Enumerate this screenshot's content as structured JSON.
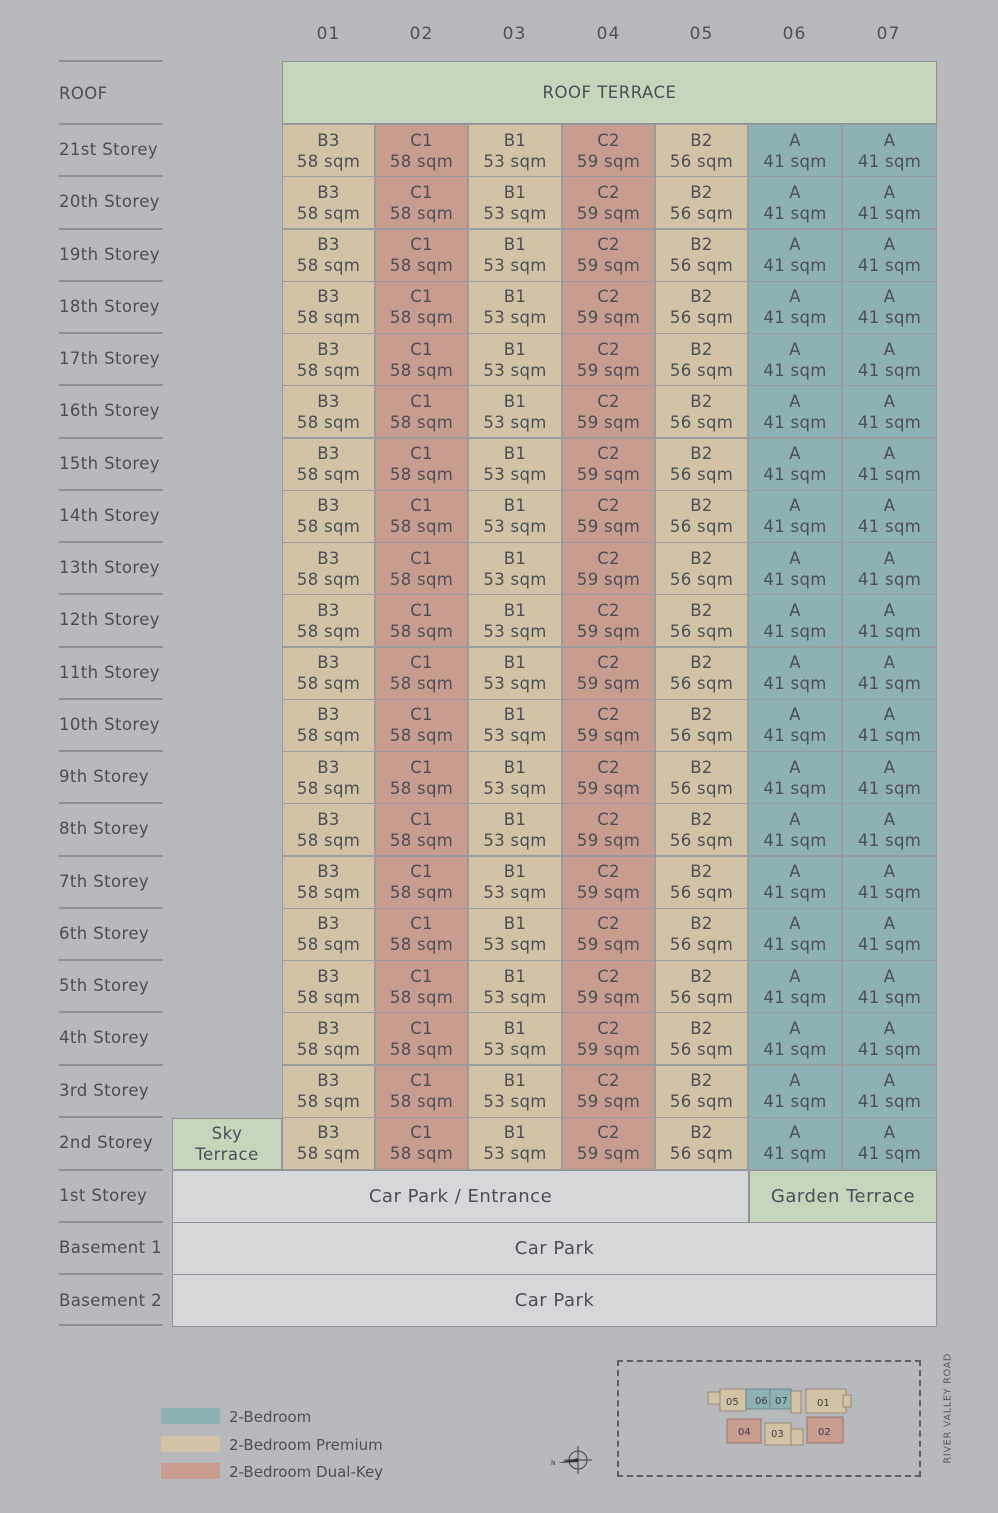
{
  "columns": [
    "01",
    "02",
    "03",
    "04",
    "05",
    "06",
    "07"
  ],
  "roof": {
    "label": "ROOF",
    "terrace": "ROOF TERRACE"
  },
  "floors": [
    "21st Storey",
    "20th Storey",
    "19th Storey",
    "18th Storey",
    "17th Storey",
    "16th Storey",
    "15th Storey",
    "14th Storey",
    "13th Storey",
    "12th Storey",
    "11th Storey",
    "10th Storey",
    "9th Storey",
    "8th Storey",
    "7th Storey",
    "6th Storey",
    "5th Storey",
    "4th Storey",
    "3rd Storey",
    "2nd Storey"
  ],
  "units": [
    {
      "type": "B3",
      "area": "58 sqm",
      "category": "premium"
    },
    {
      "type": "C1",
      "area": "58 sqm",
      "category": "dualkey"
    },
    {
      "type": "B1",
      "area": "53 sqm",
      "category": "premium"
    },
    {
      "type": "C2",
      "area": "59 sqm",
      "category": "dualkey"
    },
    {
      "type": "B2",
      "area": "56 sqm",
      "category": "premium"
    },
    {
      "type": "A",
      "area": "41 sqm",
      "category": "twobed"
    },
    {
      "type": "A",
      "area": "41 sqm",
      "category": "twobed"
    }
  ],
  "sky_terrace": {
    "line1": "Sky",
    "line2": "Terrace"
  },
  "lower": {
    "first_storey": {
      "label": "1st Storey",
      "carpark": "Car Park / Entrance",
      "garden": "Garden Terrace"
    },
    "basement1": {
      "label": "Basement 1",
      "carpark": "Car Park"
    },
    "basement2": {
      "label": "Basement 2",
      "carpark": "Car Park"
    }
  },
  "legend": [
    {
      "label": "2-Bedroom",
      "color": "#8eb1b6"
    },
    {
      "label": "2-Bedroom Premium",
      "color": "#d2c3a6"
    },
    {
      "label": "2-Bedroom Dual-Key",
      "color": "#c89d8f"
    }
  ],
  "colors": {
    "premium": "#d2c3a6",
    "dualkey": "#c89d8f",
    "twobed": "#8eb1b6",
    "terrace": "#c5d6bc",
    "carpark": "#d6d7d9"
  },
  "keyplan": {
    "road": "RIVER VALLEY ROAD",
    "north": "N",
    "units": [
      "05",
      "06",
      "07",
      "01",
      "04",
      "03",
      "02"
    ]
  }
}
